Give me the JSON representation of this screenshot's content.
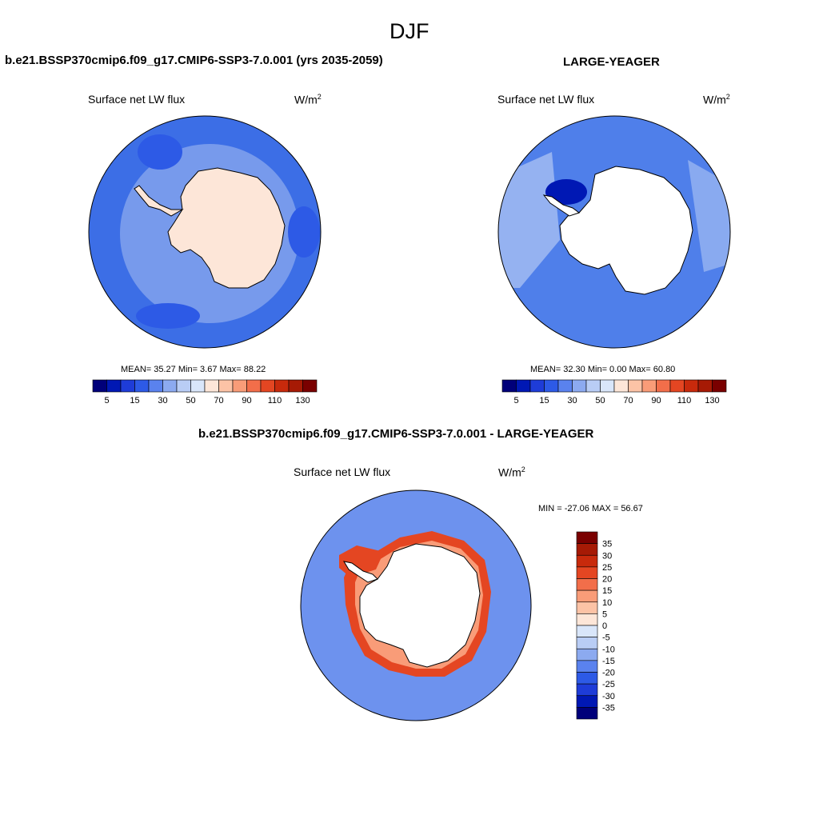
{
  "figure": {
    "season": "DJF"
  },
  "panels": [
    {
      "title": "b.e21.BSSP370cmip6.f09_g17.CMIP6-SSP3-7.0.001 (yrs 2035-2059)",
      "variable": "Surface net LW flux",
      "units_base": "W/m",
      "units_exp": "2",
      "stats": "MEAN=  35.27  Min=   3.67  Max=  88.22"
    },
    {
      "title": "LARGE-YEAGER",
      "variable": "Surface net LW flux",
      "units_base": "W/m",
      "units_exp": "2",
      "stats": "MEAN=  32.30  Min=   0.00  Max=  60.80"
    },
    {
      "title": "b.e21.BSSP370cmip6.f09_g17.CMIP6-SSP3-7.0.001 - LARGE-YEAGER",
      "variable": "Surface net LW flux",
      "units_base": "W/m",
      "units_exp": "2",
      "stats": "MIN = -27.06 MAX =  56.67"
    }
  ],
  "colorbar_abs": {
    "colors": [
      "#00007a",
      "#0018b4",
      "#1e3cd8",
      "#2d5ae6",
      "#5a82ee",
      "#8caaf0",
      "#b9cdf5",
      "#d9e6fa",
      "#fde6d8",
      "#fcc3a6",
      "#f99c78",
      "#f26e4a",
      "#e44622",
      "#c82a0c",
      "#a61a05",
      "#7a0000"
    ],
    "labels": [
      "5",
      "15",
      "30",
      "50",
      "70",
      "90",
      "110",
      "130"
    ]
  },
  "colorbar_diff": {
    "colors": [
      "#7a0000",
      "#a61a05",
      "#c82a0c",
      "#e44622",
      "#f26e4a",
      "#f99c78",
      "#fcc3a6",
      "#fde6d8",
      "#d9e6fa",
      "#b9cdf5",
      "#8caaf0",
      "#5a82ee",
      "#2d5ae6",
      "#1e3cd8",
      "#0018b4",
      "#00007a"
    ],
    "labels": [
      "35",
      "30",
      "25",
      "20",
      "15",
      "10",
      "5",
      "0",
      "-5",
      "-10",
      "-15",
      "-20",
      "-25",
      "-30",
      "-35"
    ]
  },
  "legend": {
    "colors": {
      "ocean_abs": "#3c6ee6",
      "ocean_abs_dark": "#2d5ae6",
      "ice_shelf": "#a8c0f0",
      "land_abs": "#fde6d8",
      "ocean_obs": "#4f7fea",
      "ocean_obs_light": "#9cb8f2",
      "ocean_diff": "#6d92ee",
      "diff_positive": "#e44622",
      "diff_positive_light": "#f99c78"
    }
  }
}
